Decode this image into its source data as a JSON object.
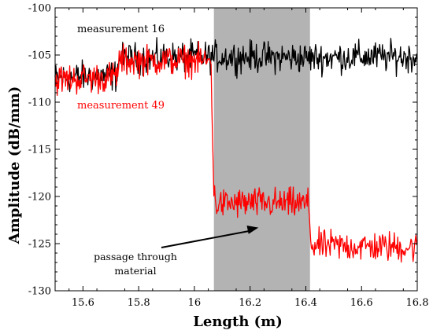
{
  "chart_data": {
    "type": "line",
    "xlabel": "Length (m)",
    "ylabel": "Amplitude (dB/mm)",
    "xlim": [
      15.5,
      16.8
    ],
    "ylim": [
      -130,
      -100
    ],
    "xticks": [
      15.6,
      15.8,
      16.0,
      16.2,
      16.4,
      16.6,
      16.8
    ],
    "yticks": [
      -130,
      -125,
      -120,
      -115,
      -110,
      -105,
      -100
    ],
    "xtick_labels": [
      "15.6",
      "15.8",
      "16",
      "16.2",
      "16.4",
      "16.6",
      "16.8"
    ],
    "ytick_labels": [
      "-130",
      "-125",
      "-120",
      "-115",
      "-110",
      "-105",
      "-100"
    ],
    "shaded_region": {
      "x": [
        16.07,
        16.415
      ],
      "color": "#b3b3b3"
    },
    "series": [
      {
        "name": "measurement 16",
        "color": "#000000",
        "x": [
          15.5,
          15.6,
          15.72,
          15.73,
          16.0,
          16.2,
          16.4,
          16.6,
          16.8
        ],
        "y": [
          -107.5,
          -107.3,
          -107.2,
          -105.4,
          -105.2,
          -105.2,
          -105.3,
          -105.2,
          -105.2
        ]
      },
      {
        "name": "measurement 49",
        "color": "#ff0000",
        "x": [
          15.5,
          15.6,
          15.72,
          15.73,
          16.0,
          16.06,
          16.07,
          16.08,
          16.2,
          16.41,
          16.42,
          16.6,
          16.8
        ],
        "y": [
          -107.6,
          -107.5,
          -107.3,
          -105.6,
          -105.6,
          -105.7,
          -120.0,
          -120.8,
          -120.7,
          -120.8,
          -125.2,
          -125.3,
          -125.4
        ]
      }
    ],
    "annotation": {
      "text_lines": [
        "passage through",
        "material"
      ],
      "arrow_target": {
        "x": 16.23,
        "y": -123.3
      }
    }
  }
}
